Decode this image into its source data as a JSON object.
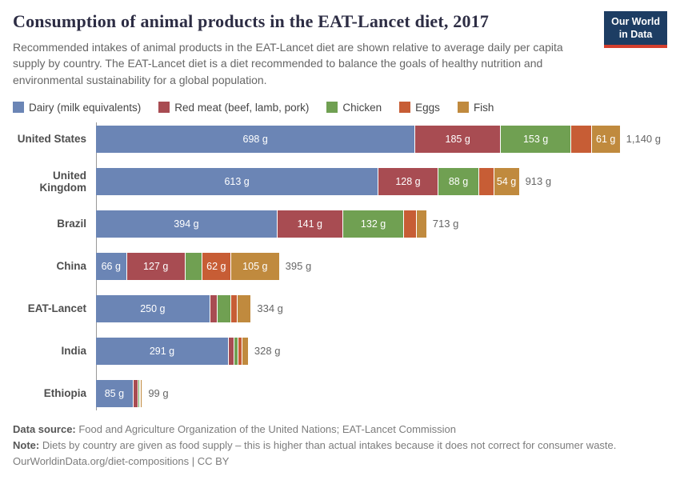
{
  "header": {
    "title": "Consumption of animal products in the EAT-Lancet diet, 2017",
    "subtitle": "Recommended intakes of animal products in the EAT-Lancet diet are shown relative to average daily per capita supply by country. The EAT-Lancet diet is a diet recommended to balance the goals of healthy nutrition and environmental sustainability for a global population.",
    "logo": {
      "line1": "Our World",
      "line2": "in Data",
      "bg": "#1d3d63",
      "accent": "#d43f2e"
    }
  },
  "chart_data": {
    "type": "bar",
    "orientation": "horizontal",
    "stacked": true,
    "unit": "g",
    "xmax": 1140,
    "legend_position": "top",
    "series": [
      {
        "name": "Dairy (milk equivalents)",
        "color": "#6b85b5"
      },
      {
        "name": "Red meat (beef, lamb, pork)",
        "color": "#a84c52"
      },
      {
        "name": "Chicken",
        "color": "#70a052"
      },
      {
        "name": "Eggs",
        "color": "#c75d35"
      },
      {
        "name": "Fish",
        "color": "#c08a3e"
      }
    ],
    "categories": [
      "United States",
      "United Kingdom",
      "Brazil",
      "China",
      "EAT-Lancet",
      "India",
      "Ethiopia"
    ],
    "values": [
      [
        698,
        185,
        153,
        43,
        61
      ],
      [
        613,
        128,
        88,
        30,
        54
      ],
      [
        394,
        141,
        132,
        25,
        21
      ],
      [
        66,
        127,
        35,
        62,
        105
      ],
      [
        250,
        14,
        29,
        13,
        28
      ],
      [
        291,
        10,
        8,
        6,
        13
      ],
      [
        85,
        9,
        2,
        1,
        2
      ]
    ],
    "segment_labels": [
      [
        "698 g",
        "185 g",
        "153 g",
        "",
        "61 g"
      ],
      [
        "613 g",
        "128 g",
        "88 g",
        "",
        "54 g"
      ],
      [
        "394 g",
        "141 g",
        "132 g",
        "",
        ""
      ],
      [
        "66 g",
        "127 g",
        "",
        "62 g",
        "105 g"
      ],
      [
        "250 g",
        "",
        "",
        "",
        ""
      ],
      [
        "291 g",
        "",
        "",
        "",
        ""
      ],
      [
        "85 g",
        "",
        "",
        "",
        ""
      ]
    ],
    "totals": [
      "1,140 g",
      "913 g",
      "713 g",
      "395 g",
      "334 g",
      "328 g",
      "99 g"
    ]
  },
  "footer": {
    "source_label": "Data source:",
    "source_text": " Food and Agriculture Organization of the United Nations; EAT-Lancet Commission",
    "note_label": "Note:",
    "note_text": " Diets by country are given as food supply – this is higher than actual intakes because it does not correct for consumer waste.",
    "url_line": "OurWorldinData.org/diet-compositions | CC BY"
  }
}
